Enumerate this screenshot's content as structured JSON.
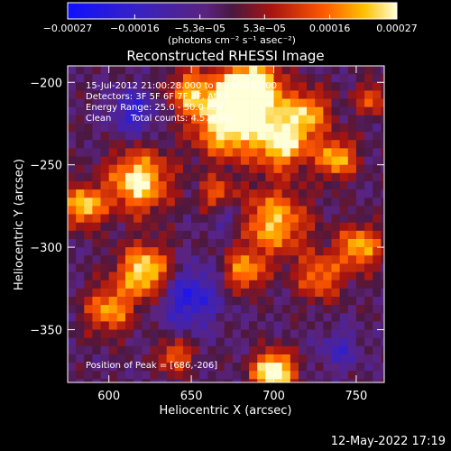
{
  "chart_data": {
    "type": "heatmap",
    "title": "Reconstructed RHESSI Image",
    "xlabel": "Heliocentric X (arcsec)",
    "ylabel": "Heliocentric Y (arcsec)",
    "xlim": [
      575,
      767
    ],
    "ylim": [
      -382,
      -190
    ],
    "x_ticks": [
      600,
      650,
      700,
      750
    ],
    "y_ticks": [
      -200,
      -250,
      -300,
      -350
    ],
    "x_tick_labels": [
      "600",
      "650",
      "700",
      "750"
    ],
    "y_tick_labels": [
      "−200",
      "−250",
      "−300",
      "−350"
    ],
    "colorbar": {
      "range": [
        -0.00027,
        0.00027
      ],
      "ticks": [
        -0.00027,
        -0.00016,
        -5.3e-05,
        5.3e-05,
        0.00016,
        0.00027
      ],
      "tick_labels": [
        "−0.00027",
        "−0.00016",
        "−5.3e−05",
        "5.3e−05",
        "0.00016",
        "0.00027"
      ],
      "unit_label": "(photons cm⁻² s⁻¹ asec⁻²)"
    },
    "annotations": {
      "time_range": "15-Jul-2012 21:00:28.000 to 21:05:28.000",
      "detectors": "Detectors: 3F 5F 6F 7F 8F, Att 0",
      "energy_range": "Energy Range: 25.0 - 50.0 keV",
      "method": "Clean",
      "total_counts": "Total counts: 4.57E+03",
      "peak_position": "Position of Peak = [686,-206]"
    },
    "peak": {
      "x": 686,
      "y": -206
    },
    "grid": false
  },
  "footer": {
    "timestamp": "12-May-2022 17:19"
  }
}
